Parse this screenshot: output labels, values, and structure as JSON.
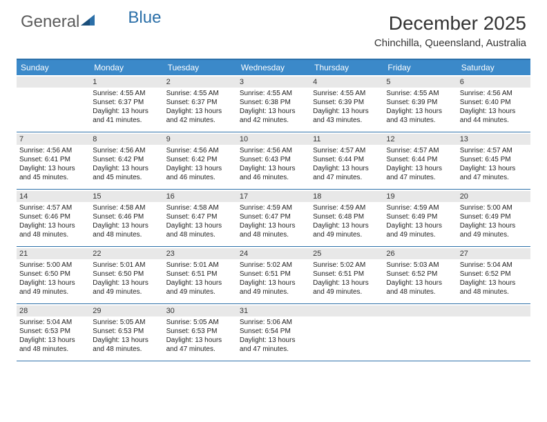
{
  "logo": {
    "text1": "General",
    "text2": "Blue"
  },
  "title": "December 2025",
  "location": "Chinchilla, Queensland, Australia",
  "colors": {
    "header_bg": "#3b89c9",
    "border": "#2b6fa8",
    "daynum_bg": "#e8e8e8",
    "text": "#222222",
    "logo_gray": "#5a5a5a",
    "logo_blue": "#2b6fa8"
  },
  "weekdays": [
    "Sunday",
    "Monday",
    "Tuesday",
    "Wednesday",
    "Thursday",
    "Friday",
    "Saturday"
  ],
  "weeks": [
    [
      {
        "n": "",
        "sr": "",
        "ss": "",
        "dl": ""
      },
      {
        "n": "1",
        "sr": "Sunrise: 4:55 AM",
        "ss": "Sunset: 6:37 PM",
        "dl": "Daylight: 13 hours and 41 minutes."
      },
      {
        "n": "2",
        "sr": "Sunrise: 4:55 AM",
        "ss": "Sunset: 6:37 PM",
        "dl": "Daylight: 13 hours and 42 minutes."
      },
      {
        "n": "3",
        "sr": "Sunrise: 4:55 AM",
        "ss": "Sunset: 6:38 PM",
        "dl": "Daylight: 13 hours and 42 minutes."
      },
      {
        "n": "4",
        "sr": "Sunrise: 4:55 AM",
        "ss": "Sunset: 6:39 PM",
        "dl": "Daylight: 13 hours and 43 minutes."
      },
      {
        "n": "5",
        "sr": "Sunrise: 4:55 AM",
        "ss": "Sunset: 6:39 PM",
        "dl": "Daylight: 13 hours and 43 minutes."
      },
      {
        "n": "6",
        "sr": "Sunrise: 4:56 AM",
        "ss": "Sunset: 6:40 PM",
        "dl": "Daylight: 13 hours and 44 minutes."
      }
    ],
    [
      {
        "n": "7",
        "sr": "Sunrise: 4:56 AM",
        "ss": "Sunset: 6:41 PM",
        "dl": "Daylight: 13 hours and 45 minutes."
      },
      {
        "n": "8",
        "sr": "Sunrise: 4:56 AM",
        "ss": "Sunset: 6:42 PM",
        "dl": "Daylight: 13 hours and 45 minutes."
      },
      {
        "n": "9",
        "sr": "Sunrise: 4:56 AM",
        "ss": "Sunset: 6:42 PM",
        "dl": "Daylight: 13 hours and 46 minutes."
      },
      {
        "n": "10",
        "sr": "Sunrise: 4:56 AM",
        "ss": "Sunset: 6:43 PM",
        "dl": "Daylight: 13 hours and 46 minutes."
      },
      {
        "n": "11",
        "sr": "Sunrise: 4:57 AM",
        "ss": "Sunset: 6:44 PM",
        "dl": "Daylight: 13 hours and 47 minutes."
      },
      {
        "n": "12",
        "sr": "Sunrise: 4:57 AM",
        "ss": "Sunset: 6:44 PM",
        "dl": "Daylight: 13 hours and 47 minutes."
      },
      {
        "n": "13",
        "sr": "Sunrise: 4:57 AM",
        "ss": "Sunset: 6:45 PM",
        "dl": "Daylight: 13 hours and 47 minutes."
      }
    ],
    [
      {
        "n": "14",
        "sr": "Sunrise: 4:57 AM",
        "ss": "Sunset: 6:46 PM",
        "dl": "Daylight: 13 hours and 48 minutes."
      },
      {
        "n": "15",
        "sr": "Sunrise: 4:58 AM",
        "ss": "Sunset: 6:46 PM",
        "dl": "Daylight: 13 hours and 48 minutes."
      },
      {
        "n": "16",
        "sr": "Sunrise: 4:58 AM",
        "ss": "Sunset: 6:47 PM",
        "dl": "Daylight: 13 hours and 48 minutes."
      },
      {
        "n": "17",
        "sr": "Sunrise: 4:59 AM",
        "ss": "Sunset: 6:47 PM",
        "dl": "Daylight: 13 hours and 48 minutes."
      },
      {
        "n": "18",
        "sr": "Sunrise: 4:59 AM",
        "ss": "Sunset: 6:48 PM",
        "dl": "Daylight: 13 hours and 49 minutes."
      },
      {
        "n": "19",
        "sr": "Sunrise: 4:59 AM",
        "ss": "Sunset: 6:49 PM",
        "dl": "Daylight: 13 hours and 49 minutes."
      },
      {
        "n": "20",
        "sr": "Sunrise: 5:00 AM",
        "ss": "Sunset: 6:49 PM",
        "dl": "Daylight: 13 hours and 49 minutes."
      }
    ],
    [
      {
        "n": "21",
        "sr": "Sunrise: 5:00 AM",
        "ss": "Sunset: 6:50 PM",
        "dl": "Daylight: 13 hours and 49 minutes."
      },
      {
        "n": "22",
        "sr": "Sunrise: 5:01 AM",
        "ss": "Sunset: 6:50 PM",
        "dl": "Daylight: 13 hours and 49 minutes."
      },
      {
        "n": "23",
        "sr": "Sunrise: 5:01 AM",
        "ss": "Sunset: 6:51 PM",
        "dl": "Daylight: 13 hours and 49 minutes."
      },
      {
        "n": "24",
        "sr": "Sunrise: 5:02 AM",
        "ss": "Sunset: 6:51 PM",
        "dl": "Daylight: 13 hours and 49 minutes."
      },
      {
        "n": "25",
        "sr": "Sunrise: 5:02 AM",
        "ss": "Sunset: 6:51 PM",
        "dl": "Daylight: 13 hours and 49 minutes."
      },
      {
        "n": "26",
        "sr": "Sunrise: 5:03 AM",
        "ss": "Sunset: 6:52 PM",
        "dl": "Daylight: 13 hours and 48 minutes."
      },
      {
        "n": "27",
        "sr": "Sunrise: 5:04 AM",
        "ss": "Sunset: 6:52 PM",
        "dl": "Daylight: 13 hours and 48 minutes."
      }
    ],
    [
      {
        "n": "28",
        "sr": "Sunrise: 5:04 AM",
        "ss": "Sunset: 6:53 PM",
        "dl": "Daylight: 13 hours and 48 minutes."
      },
      {
        "n": "29",
        "sr": "Sunrise: 5:05 AM",
        "ss": "Sunset: 6:53 PM",
        "dl": "Daylight: 13 hours and 48 minutes."
      },
      {
        "n": "30",
        "sr": "Sunrise: 5:05 AM",
        "ss": "Sunset: 6:53 PM",
        "dl": "Daylight: 13 hours and 47 minutes."
      },
      {
        "n": "31",
        "sr": "Sunrise: 5:06 AM",
        "ss": "Sunset: 6:54 PM",
        "dl": "Daylight: 13 hours and 47 minutes."
      },
      {
        "n": "",
        "sr": "",
        "ss": "",
        "dl": ""
      },
      {
        "n": "",
        "sr": "",
        "ss": "",
        "dl": ""
      },
      {
        "n": "",
        "sr": "",
        "ss": "",
        "dl": ""
      }
    ]
  ]
}
